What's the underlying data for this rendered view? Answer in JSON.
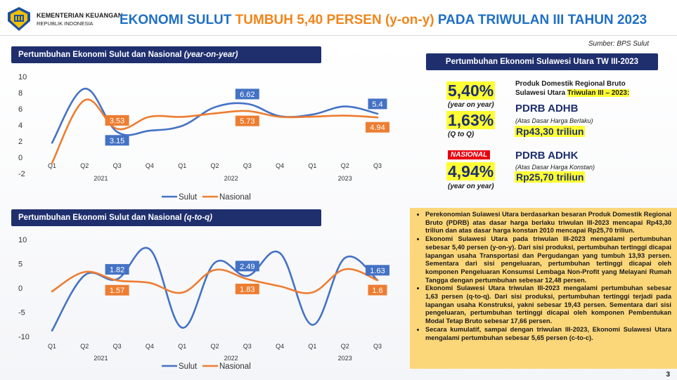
{
  "header": {
    "org_name": "KEMENTERIAN KEUANGAN",
    "org_sub": "REPUBLIK INDONESIA",
    "title_part1": "EKONOMI SULUT ",
    "title_part2": "TUMBUH 5,40 PERSEN (y-on-y)",
    "title_part3": " PADA TRIWULAN III TAHUN 2023",
    "source": "Sumber: BPS Sulut",
    "logo_icon": "kemenkeu-logo-icon"
  },
  "colors": {
    "navy": "#1f2f6e",
    "sulut": "#4472c4",
    "nasional": "#ed7d31",
    "highlight": "#ffff33",
    "notes_bg": "#fcd77a"
  },
  "chart1_header": {
    "title": "Pertumbuhan Ekonomi Sulut dan Nasional ",
    "title_italic": "(year-on-year)"
  },
  "chart2_header": {
    "title": "Pertumbuhan Ekonomi Sulut dan Nasional ",
    "title_italic": "(q-to-q)"
  },
  "chart_data": [
    {
      "type": "line",
      "title": "Pertumbuhan Ekonomi Sulut dan Nasional (year-on-year)",
      "categories": [
        "Q1",
        "Q2",
        "Q3",
        "Q4",
        "Q1",
        "Q2",
        "Q3",
        "Q4",
        "Q1",
        "Q2",
        "Q3"
      ],
      "year_labels": [
        "2021",
        "2022",
        "2023"
      ],
      "ylim": [
        -2,
        10
      ],
      "yticks": [
        "10",
        "8",
        "6",
        "4",
        "2",
        "0",
        "-2"
      ],
      "series": [
        {
          "name": "Sulut",
          "color": "#4472c4",
          "values": [
            1.8,
            8.5,
            3.15,
            3.3,
            3.9,
            6.2,
            6.62,
            5.1,
            5.3,
            6.3,
            5.4
          ]
        },
        {
          "name": "Nasional",
          "color": "#ed7d31",
          "values": [
            -0.7,
            7.07,
            3.53,
            5.02,
            5.01,
            5.44,
            5.73,
            5.01,
            5.04,
            5.17,
            4.94
          ]
        }
      ],
      "data_labels": [
        {
          "text": "3.53",
          "series": "Nasional",
          "index": 2
        },
        {
          "text": "3.15",
          "series": "Sulut",
          "index": 2
        },
        {
          "text": "6.62",
          "series": "Sulut",
          "index": 6
        },
        {
          "text": "5.73",
          "series": "Nasional",
          "index": 6
        },
        {
          "text": "5.4",
          "series": "Sulut",
          "index": 10
        },
        {
          "text": "4.94",
          "series": "Nasional",
          "index": 10
        }
      ],
      "legend_position": "bottom"
    },
    {
      "type": "line",
      "title": "Pertumbuhan Ekonomi Sulut dan Nasional (q-to-q)",
      "categories": [
        "Q1",
        "Q2",
        "Q3",
        "Q4",
        "Q1",
        "Q2",
        "Q3",
        "Q4",
        "Q1",
        "Q2",
        "Q3"
      ],
      "year_labels": [
        "2021",
        "2022",
        "2023"
      ],
      "ylim": [
        -10,
        10
      ],
      "yticks": [
        "10",
        "5",
        "0",
        "-5",
        "-10"
      ],
      "series": [
        {
          "name": "Sulut",
          "color": "#4472c4",
          "values": [
            -8.8,
            2.6,
            1.82,
            8.0,
            -8.2,
            5.2,
            2.49,
            7.2,
            -7.6,
            6.2,
            1.63
          ]
        },
        {
          "name": "Nasional",
          "color": "#ed7d31",
          "values": [
            -0.7,
            3.3,
            1.57,
            1.06,
            -0.95,
            3.72,
            1.83,
            0.36,
            -0.92,
            3.86,
            1.6
          ]
        }
      ],
      "data_labels": [
        {
          "text": "1.82",
          "series": "Sulut",
          "index": 2
        },
        {
          "text": "1.57",
          "series": "Nasional",
          "index": 2
        },
        {
          "text": "2.49",
          "series": "Sulut",
          "index": 6
        },
        {
          "text": "1.83",
          "series": "Nasional",
          "index": 6
        },
        {
          "text": "1.63",
          "series": "Sulut",
          "index": 10
        },
        {
          "text": "1.6",
          "series": "Nasional",
          "index": 10
        }
      ],
      "legend_position": "bottom"
    }
  ],
  "summary": {
    "title": "Pertumbuhan Ekonomi Sulawesi Utara TW III-2023",
    "yoy_value": "5,40%",
    "yoy_label": "(year on year)",
    "qtq_value": "1,63%",
    "qtq_label": "(Q to Q)",
    "nasional_badge": "NASIONAL",
    "nas_value": "4,94%",
    "nas_label": "(year on year)",
    "pdrb_line1": "Produk Domestik Regional Bruto",
    "pdrb_line2": "Sulawesi Utara ",
    "pdrb_highlight": "Triwulan III – 2023:",
    "adhb_title": "PDRB ADHB",
    "adhb_sub": "(Atas Dasar Harga Berlaku)",
    "adhb_value": "Rp43,30 triliun",
    "adhk_title": "PDRB ADHK",
    "adhk_sub": "(Atas Dasar Harga Konstan)",
    "adhk_value": "Rp25,70 triliun"
  },
  "notes": [
    "Perekonomian Sulawesi Utara berdasarkan besaran Produk Domestik Regional Bruto (PDRB) atas dasar harga berlaku triwulan III-2023 mencapai Rp43,30 triliun dan atas dasar harga konstan 2010 mencapai Rp25,70 triliun.",
    "Ekonomi Sulawesi Utara pada triwulan III-2023 mengalami pertumbuhan sebesar 5,40 persen (y-on-y). Dari sisi produksi, pertumbuhan tertinggi dicapai lapangan usaha Transportasi dan Pergudangan yang tumbuh 13,93 persen. Sementara dari sisi pengeluaran, pertumbuhan tertinggi dicapai oleh komponen Pengeluaran Konsumsi Lembaga Non-Profit yang Melayani Rumah Tangga dengan pertumbuhan sebesar 12,48 persen.",
    "Ekonomi Sulawesi Utara triwulan III-2023 mengalami pertumbuhan sebesar 1,63 persen (q-to-q). Dari sisi produksi, pertumbuhan tertinggi terjadi pada lapangan usaha Konstruksi, yakni sebesar 19,43 persen. Sementara dari sisi pengeluaran, pertumbuhan tertinggi dicapai oleh komponen Pembentukan Modal Tetap Bruto sebesar 17,66 persen.",
    "Secara kumulatif, sampai dengan triwulan III-2023, Ekonomi Sulawesi Utara mengalami pertumbuhan sebesar 5,65 persen (c-to-c)."
  ],
  "page_number": "3"
}
